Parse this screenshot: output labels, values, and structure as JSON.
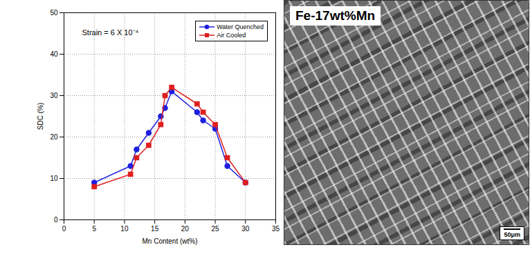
{
  "chart_data": {
    "type": "line",
    "annotation": "Strain = 6 X 10⁻⁴",
    "x_label": "Mn Content (wt%)",
    "y_label": "SDC (%)",
    "x": [
      5,
      11,
      12,
      14,
      16,
      16.7,
      17.8,
      22,
      23,
      25,
      27,
      30
    ],
    "series": [
      {
        "name": "Water Quenched",
        "color": "#1f1fe0",
        "marker": "circle",
        "values": [
          9,
          13,
          17,
          21,
          25,
          27,
          31,
          26,
          24,
          22,
          13,
          9
        ]
      },
      {
        "name": "Air Cooled",
        "color": "#e01f1f",
        "marker": "square",
        "values": [
          8,
          11,
          15,
          18,
          23,
          30,
          32,
          28,
          26,
          23,
          15,
          9
        ]
      }
    ],
    "xlim": [
      0,
      35
    ],
    "xticks": [
      0,
      5,
      10,
      15,
      20,
      25,
      30,
      35
    ],
    "ylim": [
      0,
      50
    ],
    "yticks": [
      0,
      10,
      20,
      30,
      40,
      50
    ],
    "grid": true,
    "legend": "upper right"
  },
  "micrograph": {
    "title": "Fe-17wt%Mn",
    "scale_bar": "50μm"
  }
}
